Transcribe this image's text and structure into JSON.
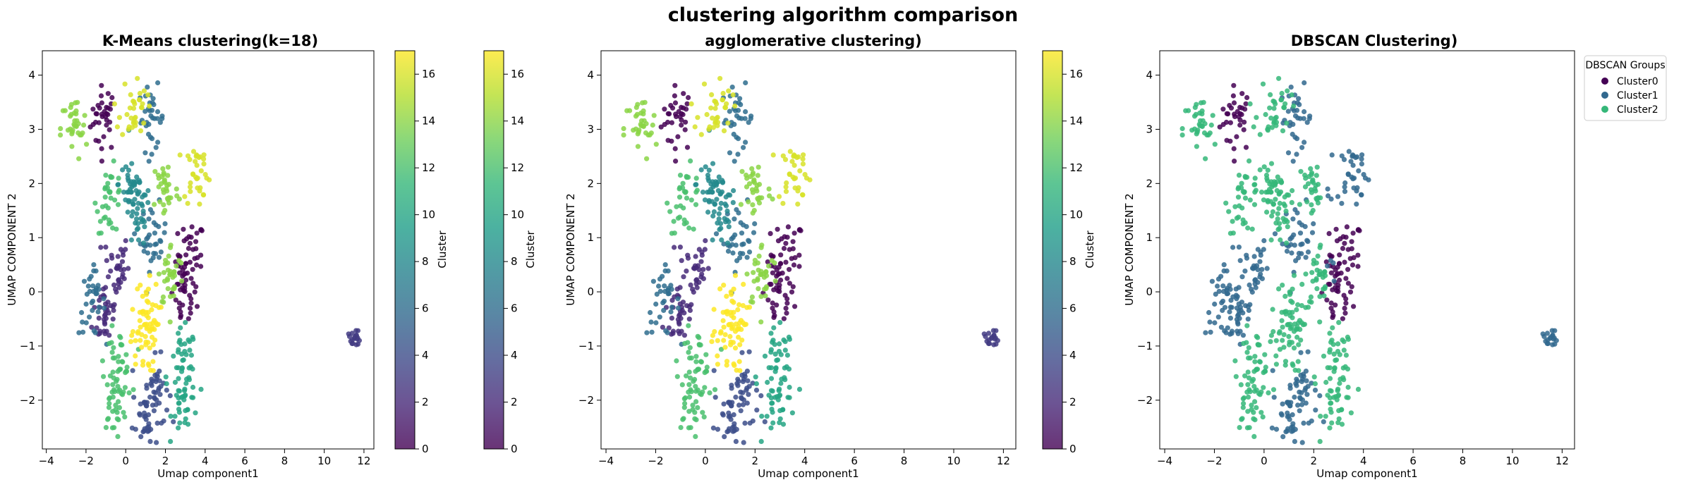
{
  "figure": {
    "title": "clustering algorithm comparison"
  },
  "colors": {
    "viridis": [
      "#440154",
      "#482878",
      "#3e4989",
      "#31688e",
      "#26828e",
      "#1f9e89",
      "#35b779",
      "#6ece58",
      "#b5de2b",
      "#fde725"
    ],
    "dbscan": [
      "#440154",
      "#31688e",
      "#35b779"
    ],
    "axis": "#000000"
  },
  "chart_data": [
    {
      "type": "scatter",
      "title": "K-Means clustering(k=18)",
      "xlabel": "Umap component1",
      "ylabel": "UMAP COMPONENT 2",
      "xlim": [
        -4.2,
        12.5
      ],
      "ylim": [
        -2.9,
        4.45
      ],
      "xticks": [
        -4,
        -2,
        0,
        2,
        4,
        6,
        8,
        10,
        12
      ],
      "yticks": [
        -2,
        -1,
        0,
        1,
        2,
        3,
        4
      ],
      "colormap": "viridis",
      "alpha": 0.8,
      "series": [
        {
          "centers": [
            [
              -1.1,
              3.2
            ],
            [
              3.3,
              0.7
            ],
            [
              2.9,
              -0.1
            ]
          ],
          "value": 0
        },
        {
          "centers": [
            [
              -0.5,
              0.5
            ],
            [
              -1.0,
              -0.4
            ]
          ],
          "value": 2
        },
        {
          "centers": [
            [
              1.5,
              -1.8
            ],
            [
              1.0,
              -2.3
            ]
          ],
          "value": 4
        },
        {
          "centers": [
            [
              1.4,
              1.0
            ],
            [
              1.3,
              3.2
            ],
            [
              -1.7,
              -0.2
            ]
          ],
          "value": 6
        },
        {
          "centers": [
            [
              0.3,
              2.0
            ],
            [
              0.6,
              1.4
            ]
          ],
          "value": 8
        },
        {
          "centers": [
            [
              2.9,
              -1.3
            ],
            [
              3.0,
              -2.0
            ]
          ],
          "value": 10
        },
        {
          "centers": [
            [
              -0.8,
              1.7
            ],
            [
              -0.4,
              -1.3
            ],
            [
              -0.6,
              -2.0
            ]
          ],
          "value": 12
        },
        {
          "centers": [
            [
              -2.6,
              3.0
            ],
            [
              2.0,
              1.9
            ],
            [
              2.3,
              0.3
            ]
          ],
          "value": 14
        },
        {
          "centers": [
            [
              0.4,
              3.4
            ],
            [
              3.6,
              2.2
            ]
          ],
          "value": 16
        },
        {
          "centers": [
            [
              1.0,
              -0.4
            ],
            [
              0.9,
              -0.9
            ]
          ],
          "value": 17
        }
      ],
      "outlier_cluster": {
        "center": [
          11.5,
          -0.8
        ],
        "value": 3
      },
      "colorbars": [
        {
          "label": "Cluster",
          "range": [
            0,
            17
          ],
          "ticks": [
            0,
            2,
            4,
            6,
            8,
            10,
            12,
            14,
            16
          ]
        },
        {
          "label": "Cluster",
          "range": [
            0,
            17
          ],
          "ticks": [
            0,
            2,
            4,
            6,
            8,
            10,
            12,
            14,
            16
          ]
        }
      ]
    },
    {
      "type": "scatter",
      "title": "agglomerative clustering)",
      "xlabel": "Umap component1",
      "ylabel": "UMAP COMPONENT 2",
      "xlim": [
        -4.2,
        12.5
      ],
      "ylim": [
        -2.9,
        4.45
      ],
      "xticks": [
        -4,
        -2,
        0,
        2,
        4,
        6,
        8,
        10,
        12
      ],
      "yticks": [
        -2,
        -1,
        0,
        1,
        2,
        3,
        4
      ],
      "colormap": "viridis",
      "alpha": 0.8,
      "colorbars": [
        {
          "label": "Cluster",
          "range": [
            0,
            17
          ],
          "ticks": [
            0,
            2,
            4,
            6,
            8,
            10,
            12,
            14,
            16
          ]
        }
      ]
    },
    {
      "type": "scatter",
      "title": "DBSCAN Clustering)",
      "xlabel": "Umap component1",
      "ylabel": "UMAP COMPONENT 2",
      "xlim": [
        -4.2,
        12.5
      ],
      "ylim": [
        -2.9,
        4.45
      ],
      "xticks": [
        -4,
        -2,
        0,
        2,
        4,
        6,
        8,
        10,
        12
      ],
      "yticks": [
        -2,
        -1,
        0,
        1,
        2,
        3,
        4
      ],
      "legend": {
        "title": "DBSCAN Groups",
        "placement": "top-right",
        "entries": [
          "Cluster0",
          "Cluster1",
          "Cluster2"
        ]
      }
    }
  ]
}
